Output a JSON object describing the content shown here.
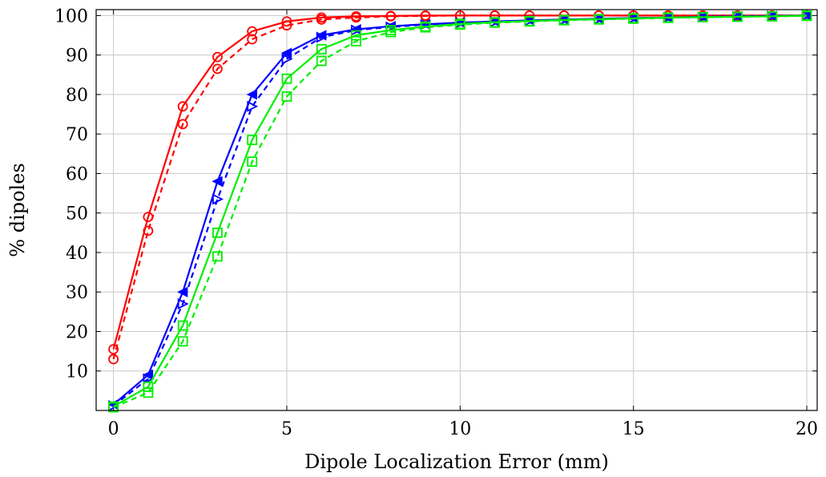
{
  "chart_data": {
    "type": "line",
    "title": "",
    "xlabel": "Dipole Localization Error (mm)",
    "ylabel": "% dipoles",
    "xlim": [
      -0.5,
      20.3
    ],
    "ylim": [
      0,
      101.5
    ],
    "xticks": [
      0,
      5,
      10,
      15,
      20
    ],
    "yticks": [
      10,
      20,
      30,
      40,
      50,
      60,
      70,
      80,
      90,
      100
    ],
    "grid": true,
    "legend": "none",
    "x": [
      0,
      1,
      2,
      3,
      4,
      5,
      6,
      7,
      8,
      9,
      10,
      11,
      12,
      13,
      14,
      15,
      16,
      17,
      18,
      19,
      20
    ],
    "series": [
      {
        "color": "#ff0000",
        "dash": "solid",
        "marker": "circle",
        "values": [
          15.5,
          49,
          77,
          89.5,
          96,
          98.5,
          99.5,
          99.8,
          99.9,
          100,
          100,
          100,
          100,
          100,
          100,
          100,
          100,
          100,
          100,
          100,
          100
        ]
      },
      {
        "color": "#ff0000",
        "dash": "dashed",
        "marker": "circle",
        "values": [
          13,
          45.5,
          72.5,
          86.5,
          94,
          97.5,
          99,
          99.5,
          99.8,
          99.9,
          100,
          100,
          100,
          100,
          100,
          100,
          100,
          100,
          100,
          100,
          100
        ]
      },
      {
        "color": "#0000ff",
        "dash": "solid",
        "marker": "triangle-left",
        "values": [
          1.5,
          9,
          30,
          58,
          80,
          90.5,
          95,
          96.5,
          97.3,
          97.8,
          98.2,
          98.5,
          98.8,
          99,
          99.2,
          99.4,
          99.5,
          99.7,
          99.8,
          99.9,
          100
        ]
      },
      {
        "color": "#0000ff",
        "dash": "dashed",
        "marker": "triangle-right",
        "values": [
          1.2,
          8,
          27,
          53.5,
          77,
          89,
          94.5,
          96.3,
          97.1,
          97.7,
          98.1,
          98.4,
          98.7,
          98.9,
          99.1,
          99.3,
          99.5,
          99.6,
          99.8,
          99.9,
          100
        ]
      },
      {
        "color": "#00ee00",
        "dash": "solid",
        "marker": "square",
        "values": [
          1,
          6,
          21.5,
          45,
          68.5,
          84,
          91.5,
          95,
          96.3,
          97.2,
          97.9,
          98.3,
          98.6,
          98.9,
          99.1,
          99.3,
          99.5,
          99.6,
          99.7,
          99.8,
          100
        ]
      },
      {
        "color": "#00ee00",
        "dash": "dashed",
        "marker": "square",
        "values": [
          0.8,
          4.5,
          17.5,
          39,
          63,
          79.5,
          88.5,
          93.5,
          95.8,
          97,
          97.7,
          98.2,
          98.5,
          98.8,
          99,
          99.2,
          99.4,
          99.6,
          99.7,
          99.8,
          99.9
        ]
      }
    ]
  }
}
